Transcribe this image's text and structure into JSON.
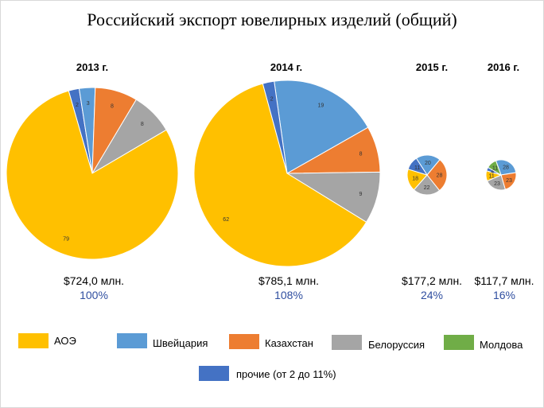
{
  "title": "Российский экспорт ювелирных изделий (общий)",
  "legend": [
    {
      "name": "АОЭ",
      "color": "#ffc000"
    },
    {
      "name": "Швейцария",
      "color": "#5b9bd5"
    },
    {
      "name": "Казахстан",
      "color": "#ed7d31"
    },
    {
      "name": "Белоруссия",
      "color": "#a5a5a5"
    },
    {
      "name": "Молдова",
      "color": "#70ad47"
    },
    {
      "name": "прочие  (от 2 до 11%)",
      "color": "#4472c4"
    }
  ],
  "chart_data": [
    {
      "type": "pie",
      "title": "2013 г.",
      "total_label": "$724,0 млн.",
      "share_label": "100%",
      "slices": [
        {
          "name": "прочие",
          "value": 2
        },
        {
          "name": "Швейцария",
          "value": 3
        },
        {
          "name": "Казахстан",
          "value": 8
        },
        {
          "name": "Белоруссия",
          "value": 8
        },
        {
          "name": "АОЭ",
          "value": 79
        }
      ]
    },
    {
      "type": "pie",
      "title": "2014 г.",
      "total_label": "$785,1 млн.",
      "share_label": "108%",
      "slices": [
        {
          "name": "Швейцария",
          "value": 19
        },
        {
          "name": "Казахстан",
          "value": 8
        },
        {
          "name": "Белоруссия",
          "value": 9
        },
        {
          "name": "АОЭ",
          "value": 62
        },
        {
          "name": "прочие",
          "value": 2
        }
      ]
    },
    {
      "type": "pie",
      "title": "2015 г.",
      "total_label": "$177,2 млн.",
      "share_label": "24%",
      "slices": [
        {
          "name": "Швейцария",
          "value": 20
        },
        {
          "name": "Казахстан",
          "value": 28
        },
        {
          "name": "Белоруссия",
          "value": 22
        },
        {
          "name": "АОЭ",
          "value": 18
        },
        {
          "name": "прочие",
          "value": 11
        }
      ]
    },
    {
      "type": "pie",
      "title": "2016 г.",
      "total_label": "$117,7 млн.",
      "share_label": "16%",
      "slices": [
        {
          "name": "Швейцария",
          "value": 28
        },
        {
          "name": "Казахстан",
          "value": 23
        },
        {
          "name": "Белоруссия",
          "value": 23
        },
        {
          "name": "АОЭ",
          "value": 11
        },
        {
          "name": "прочие",
          "value": 4
        },
        {
          "name": "Молдова",
          "value": 11
        }
      ]
    }
  ]
}
